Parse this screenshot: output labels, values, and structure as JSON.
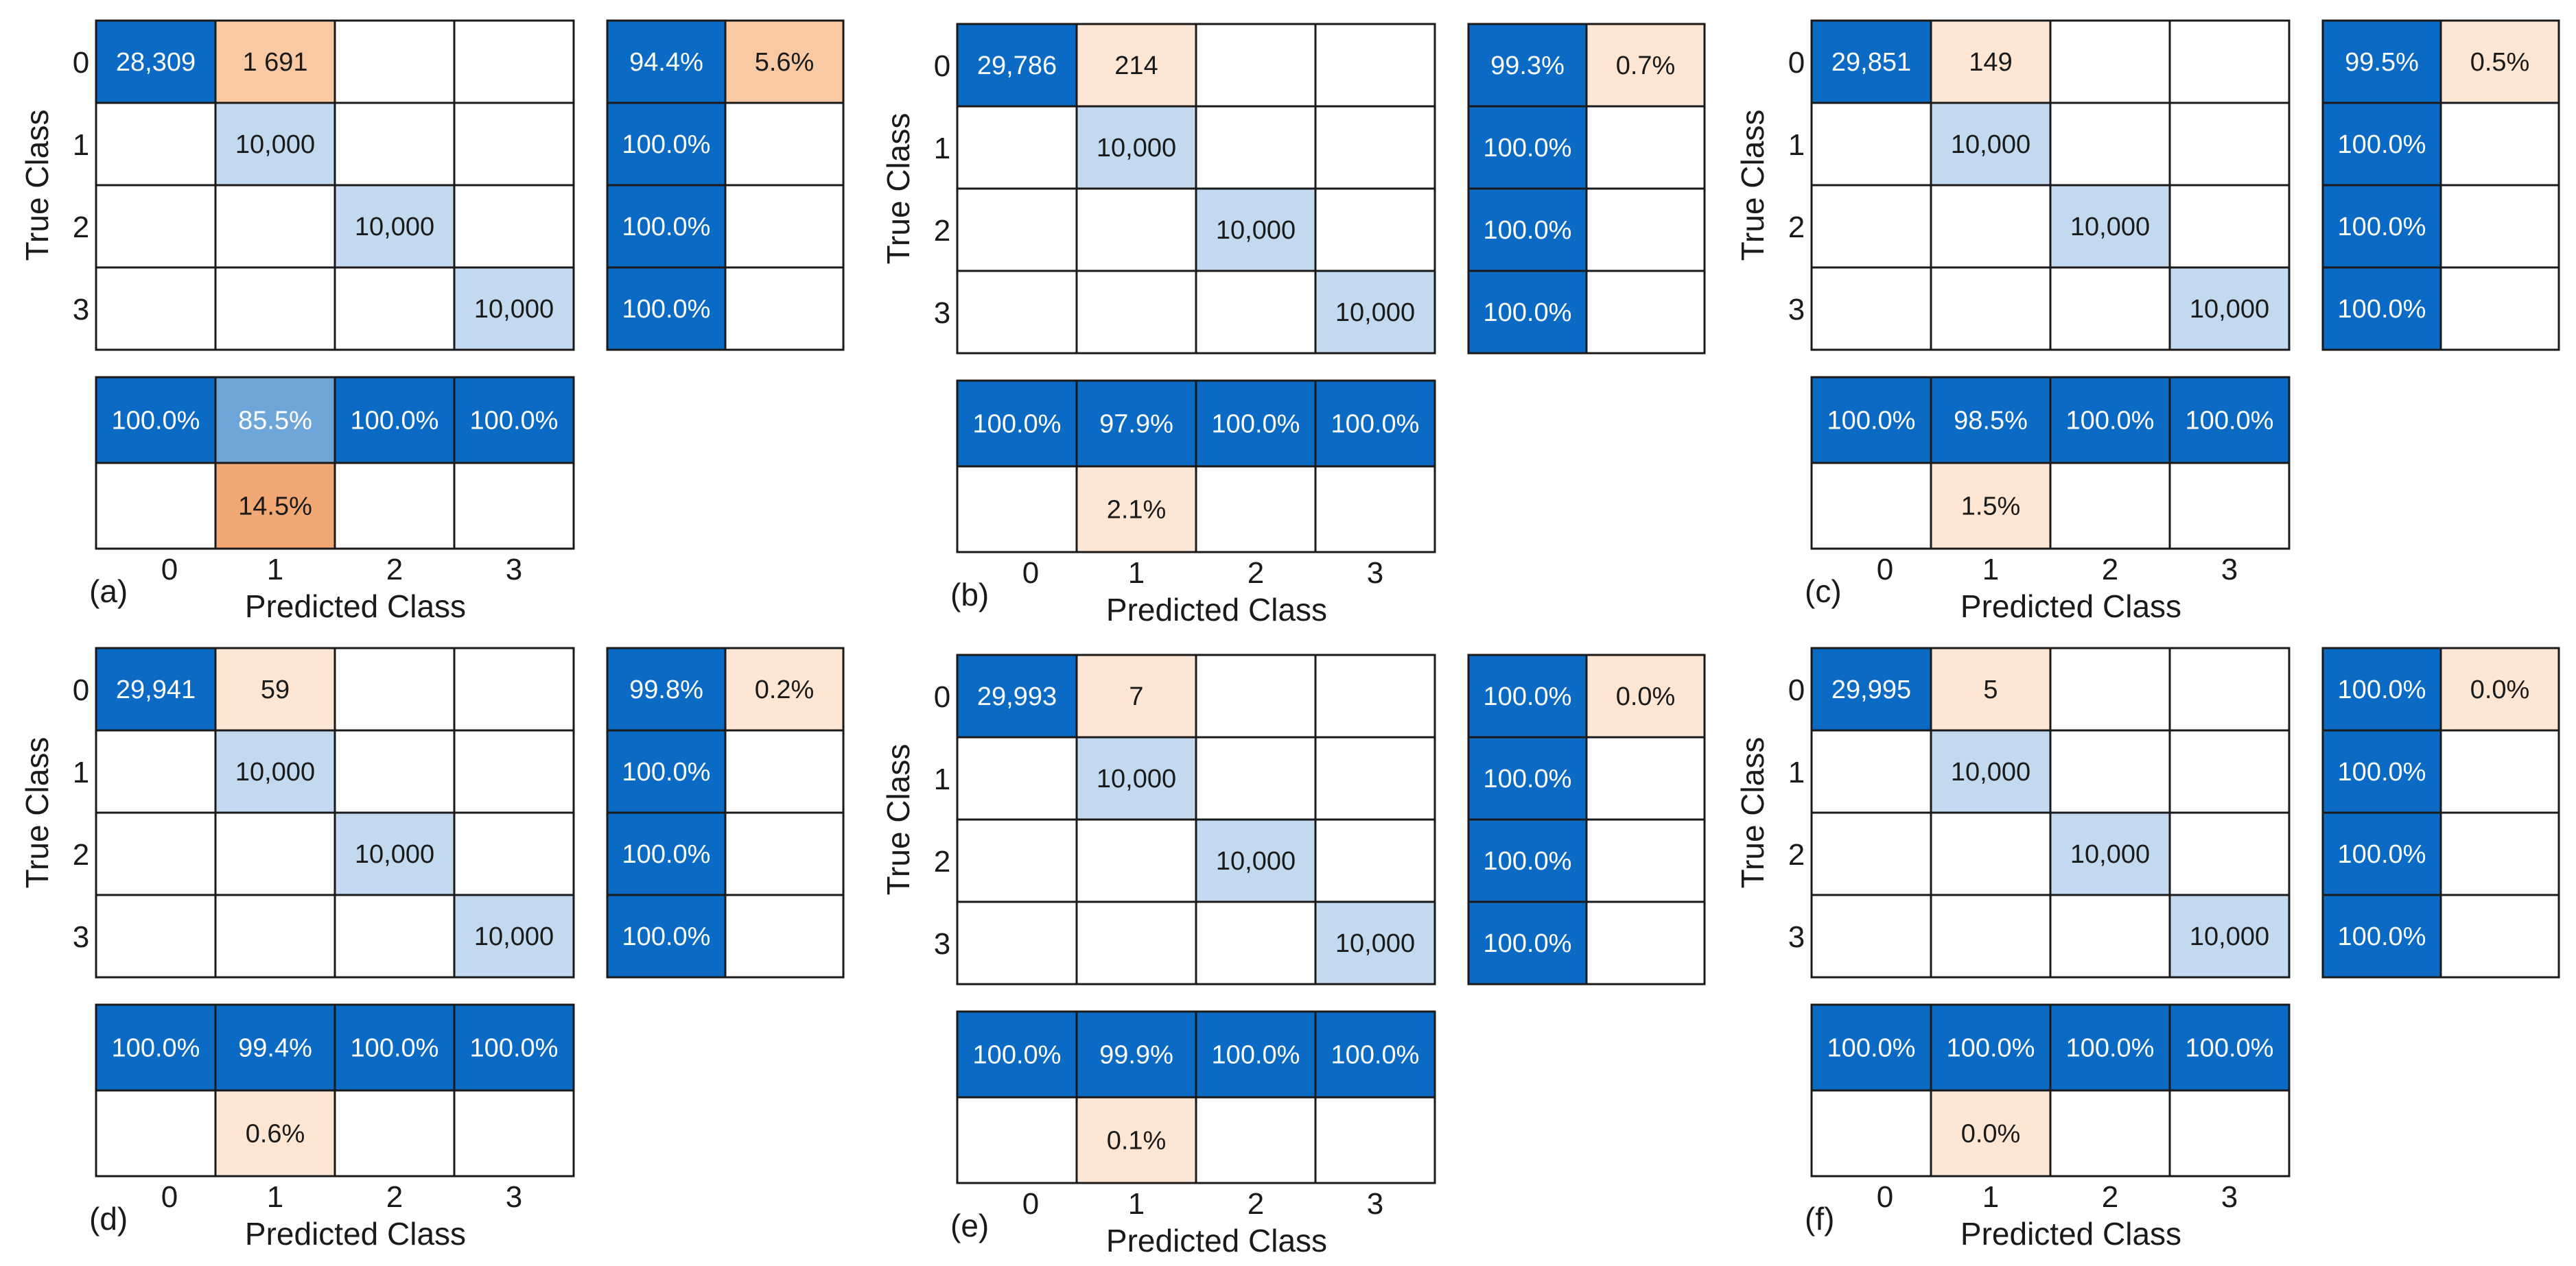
{
  "figure": {
    "y_axis_label": "True Class",
    "x_axis_label": "Predicted Class",
    "class_labels": [
      "0",
      "1",
      "2",
      "3"
    ]
  },
  "colors": {
    "dark_blue": "#0a6ac4",
    "light_blue": "#c3d9f0",
    "mid_blue": "#6fa6da",
    "light_orange": "#fde6d3",
    "mid_orange": "#f8c9a3",
    "dark_orange": "#f2a874",
    "grid_line": "#1a1a1a",
    "text_dark": "#1a1a1a",
    "text_light": "#ffffff"
  },
  "chart_data": [
    {
      "type": "table",
      "panel_label": "(a)",
      "title": "",
      "xlabel": "Predicted Class",
      "ylabel": "True Class",
      "classes": [
        "0",
        "1",
        "2",
        "3"
      ],
      "matrix": [
        [
          "28,309",
          "1 691",
          "",
          ""
        ],
        [
          "",
          "10,000",
          "",
          ""
        ],
        [
          "",
          "",
          "10,000",
          ""
        ],
        [
          "",
          "",
          "",
          "10,000"
        ]
      ],
      "row_summary": [
        [
          "94.4%",
          "5.6%"
        ],
        [
          "100.0%",
          ""
        ],
        [
          "100.0%",
          ""
        ],
        [
          "100.0%",
          ""
        ]
      ],
      "col_summary": [
        [
          "100.0%",
          "85.5%",
          "100.0%",
          "100.0%"
        ],
        [
          "",
          "14.5%",
          "",
          ""
        ]
      ]
    },
    {
      "type": "table",
      "panel_label": "(b)",
      "title": "",
      "xlabel": "Predicted Class",
      "ylabel": "True Class",
      "classes": [
        "0",
        "1",
        "2",
        "3"
      ],
      "matrix": [
        [
          "29,786",
          "214",
          "",
          ""
        ],
        [
          "",
          "10,000",
          "",
          ""
        ],
        [
          "",
          "",
          "10,000",
          ""
        ],
        [
          "",
          "",
          "",
          "10,000"
        ]
      ],
      "row_summary": [
        [
          "99.3%",
          "0.7%"
        ],
        [
          "100.0%",
          ""
        ],
        [
          "100.0%",
          ""
        ],
        [
          "100.0%",
          ""
        ]
      ],
      "col_summary": [
        [
          "100.0%",
          "97.9%",
          "100.0%",
          "100.0%"
        ],
        [
          "",
          "2.1%",
          "",
          ""
        ]
      ]
    },
    {
      "type": "table",
      "panel_label": "(c)",
      "title": "",
      "xlabel": "Predicted Class",
      "ylabel": "True Class",
      "classes": [
        "0",
        "1",
        "2",
        "3"
      ],
      "matrix": [
        [
          "29,851",
          "149",
          "",
          ""
        ],
        [
          "",
          "10,000",
          "",
          ""
        ],
        [
          "",
          "",
          "10,000",
          ""
        ],
        [
          "",
          "",
          "",
          "10,000"
        ]
      ],
      "row_summary": [
        [
          "99.5%",
          "0.5%"
        ],
        [
          "100.0%",
          ""
        ],
        [
          "100.0%",
          ""
        ],
        [
          "100.0%",
          ""
        ]
      ],
      "col_summary": [
        [
          "100.0%",
          "98.5%",
          "100.0%",
          "100.0%"
        ],
        [
          "",
          "1.5%",
          "",
          ""
        ]
      ]
    },
    {
      "type": "table",
      "panel_label": "(d)",
      "title": "",
      "xlabel": "Predicted Class",
      "ylabel": "True Class",
      "classes": [
        "0",
        "1",
        "2",
        "3"
      ],
      "matrix": [
        [
          "29,941",
          "59",
          "",
          ""
        ],
        [
          "",
          "10,000",
          "",
          ""
        ],
        [
          "",
          "",
          "10,000",
          ""
        ],
        [
          "",
          "",
          "",
          "10,000"
        ]
      ],
      "row_summary": [
        [
          "99.8%",
          "0.2%"
        ],
        [
          "100.0%",
          ""
        ],
        [
          "100.0%",
          ""
        ],
        [
          "100.0%",
          ""
        ]
      ],
      "col_summary": [
        [
          "100.0%",
          "99.4%",
          "100.0%",
          "100.0%"
        ],
        [
          "",
          "0.6%",
          "",
          ""
        ]
      ]
    },
    {
      "type": "table",
      "panel_label": "(e)",
      "title": "",
      "xlabel": "Predicted Class",
      "ylabel": "True Class",
      "classes": [
        "0",
        "1",
        "2",
        "3"
      ],
      "matrix": [
        [
          "29,993",
          "7",
          "",
          ""
        ],
        [
          "",
          "10,000",
          "",
          ""
        ],
        [
          "",
          "",
          "10,000",
          ""
        ],
        [
          "",
          "",
          "",
          "10,000"
        ]
      ],
      "row_summary": [
        [
          "100.0%",
          "0.0%"
        ],
        [
          "100.0%",
          ""
        ],
        [
          "100.0%",
          ""
        ],
        [
          "100.0%",
          ""
        ]
      ],
      "col_summary": [
        [
          "100.0%",
          "99.9%",
          "100.0%",
          "100.0%"
        ],
        [
          "",
          "0.1%",
          "",
          ""
        ]
      ]
    },
    {
      "type": "table",
      "panel_label": "(f)",
      "title": "",
      "xlabel": "Predicted Class",
      "ylabel": "True Class",
      "classes": [
        "0",
        "1",
        "2",
        "3"
      ],
      "matrix": [
        [
          "29,995",
          "5",
          "",
          ""
        ],
        [
          "",
          "10,000",
          "",
          ""
        ],
        [
          "",
          "",
          "10,000",
          ""
        ],
        [
          "",
          "",
          "",
          "10,000"
        ]
      ],
      "row_summary": [
        [
          "100.0%",
          "0.0%"
        ],
        [
          "100.0%",
          ""
        ],
        [
          "100.0%",
          ""
        ],
        [
          "100.0%",
          ""
        ]
      ],
      "col_summary": [
        [
          "100.0%",
          "100.0%",
          "100.0%",
          "100.0%"
        ],
        [
          "",
          "0.0%",
          "",
          ""
        ]
      ]
    }
  ]
}
